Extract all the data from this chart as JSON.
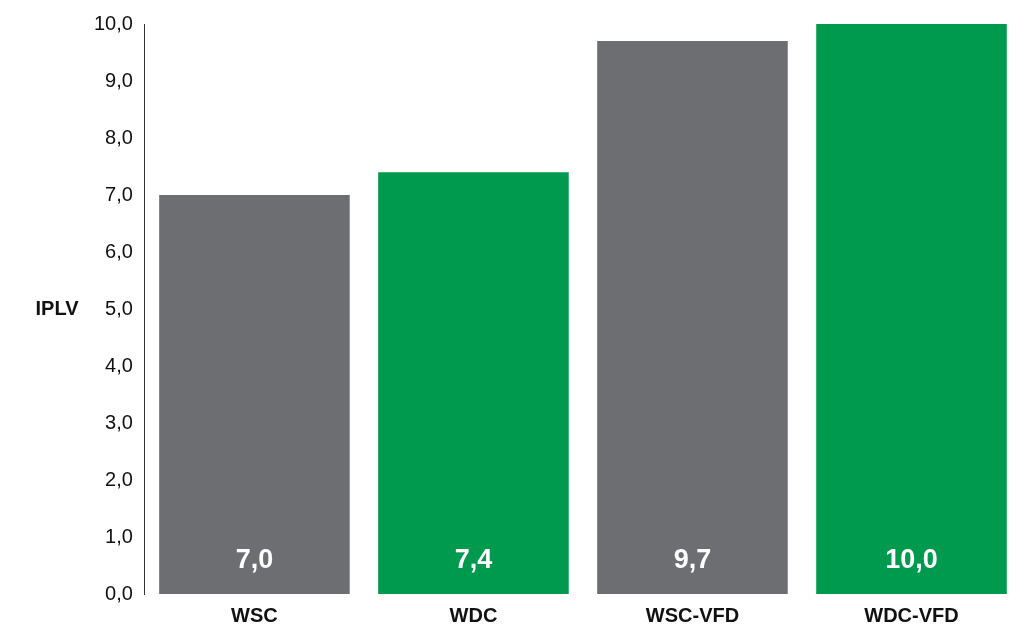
{
  "chart_data": {
    "type": "bar",
    "ylabel": "IPLV",
    "categories": [
      "WSC",
      "WDC",
      "WSC-VFD",
      "WDC-VFD"
    ],
    "values": [
      7.0,
      7.4,
      9.7,
      10.0
    ],
    "colors": [
      "#6d6e71",
      "#009a4e",
      "#6d6e71",
      "#009a4e"
    ],
    "value_labels": [
      "7,0",
      "7,4",
      "9,7",
      "10,0"
    ],
    "ylim": [
      0,
      10
    ],
    "yticks": [
      {
        "value": 0,
        "label": "0,0"
      },
      {
        "value": 1,
        "label": "1,0"
      },
      {
        "value": 2,
        "label": "2,0"
      },
      {
        "value": 3,
        "label": "3,0"
      },
      {
        "value": 4,
        "label": "4,0"
      },
      {
        "value": 5,
        "label": "5,0"
      },
      {
        "value": 6,
        "label": "6,0"
      },
      {
        "value": 7,
        "label": "7,0"
      },
      {
        "value": 8,
        "label": "8,0"
      },
      {
        "value": 9,
        "label": "9,0"
      },
      {
        "value": 10,
        "label": "10,0"
      }
    ]
  }
}
